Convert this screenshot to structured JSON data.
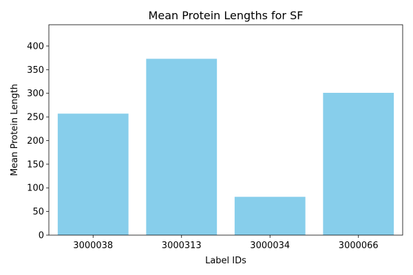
{
  "chart_data": {
    "type": "bar",
    "title": "Mean Protein Lengths for SF",
    "xlabel": "Label IDs",
    "ylabel": "Mean Protein Length",
    "categories": [
      "3000038",
      "3000313",
      "3000034",
      "3000066"
    ],
    "values": [
      257,
      373,
      81,
      301
    ],
    "ylim": [
      0,
      445
    ],
    "yticks": [
      0,
      50,
      100,
      150,
      200,
      250,
      300,
      350,
      400
    ],
    "grid": false,
    "legend": "none",
    "bar_color": "#87CEEB"
  }
}
